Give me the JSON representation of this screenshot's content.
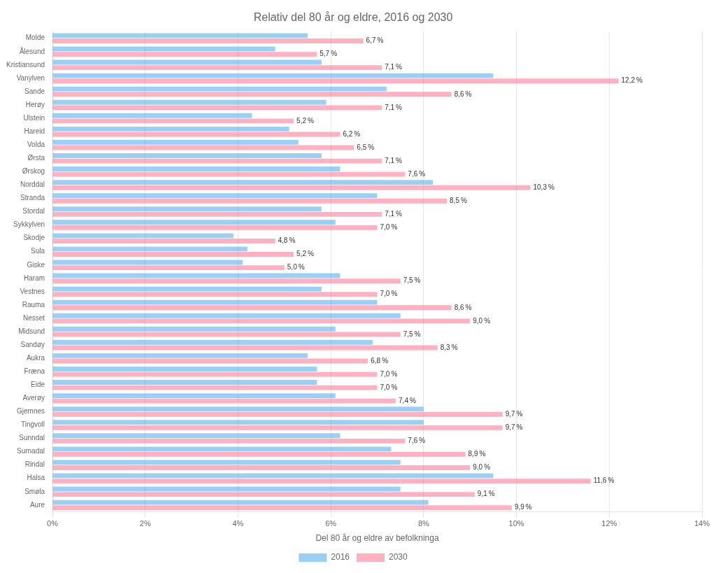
{
  "chart_data": {
    "type": "bar",
    "orientation": "horizontal",
    "title": "Relativ del 80 år og eldre, 2016 og 2030",
    "xlabel": "Del 80 år og eldre av befolkninga",
    "categories": [
      "Molde",
      "Ålesund",
      "Kristiansund",
      "Vanylven",
      "Sande",
      "Herøy",
      "Ulstein",
      "Hareid",
      "Volda",
      "Ørsta",
      "Ørskog",
      "Norddal",
      "Stranda",
      "Stordal",
      "Sykkylven",
      "Skodje",
      "Sula",
      "Giske",
      "Haram",
      "Vestnes",
      "Rauma",
      "Nesset",
      "Midsund",
      "Sandøy",
      "Aukra",
      "Fræna",
      "Eide",
      "Averøy",
      "Gjemnes",
      "Tingvoll",
      "Sunndal",
      "Surnadal",
      "Rindal",
      "Halsa",
      "Smøla",
      "Aure"
    ],
    "series": [
      {
        "name": "2016",
        "values": [
          5.5,
          4.8,
          5.8,
          9.5,
          7.2,
          5.9,
          4.3,
          5.1,
          5.3,
          5.8,
          6.2,
          8.2,
          7.0,
          5.8,
          6.1,
          3.9,
          4.2,
          4.1,
          6.2,
          5.8,
          7.0,
          7.5,
          6.1,
          6.9,
          5.5,
          5.7,
          5.7,
          6.1,
          8.0,
          8.0,
          6.2,
          7.3,
          7.5,
          9.5,
          7.5,
          8.1
        ]
      },
      {
        "name": "2030",
        "values": [
          6.7,
          5.7,
          7.1,
          12.2,
          8.6,
          7.1,
          5.2,
          6.2,
          6.5,
          7.1,
          7.6,
          10.3,
          8.5,
          7.1,
          7.0,
          4.8,
          5.2,
          5.0,
          7.5,
          7.0,
          8.6,
          9.0,
          7.5,
          8.3,
          6.8,
          7.0,
          7.0,
          7.4,
          9.7,
          9.7,
          7.6,
          8.9,
          9.0,
          11.6,
          9.1,
          9.9
        ],
        "data_labels": true,
        "value_labels": [
          "6,7 %",
          "5,7 %",
          "7,1 %",
          "12,2 %",
          "8,6 %",
          "7,1 %",
          "5,2 %",
          "6,2 %",
          "6,5 %",
          "7,1 %",
          "7,6 %",
          "10,3 %",
          "8,5 %",
          "7,1 %",
          "7,0 %",
          "4,8 %",
          "5,2 %",
          "5,0 %",
          "7,5 %",
          "7,0 %",
          "8,6 %",
          "9,0 %",
          "7,5 %",
          "8,3 %",
          "6,8 %",
          "7,0 %",
          "7,0 %",
          "7,4 %",
          "9,7 %",
          "9,7 %",
          "7,6 %",
          "8,9 %",
          "9,0 %",
          "11,6 %",
          "9,1 %",
          "9,9 %"
        ]
      }
    ],
    "xlim": [
      0,
      14
    ],
    "xticks": [
      {
        "value": 0,
        "label": "0%"
      },
      {
        "value": 2,
        "label": "2%"
      },
      {
        "value": 4,
        "label": "4%"
      },
      {
        "value": 6,
        "label": "6%"
      },
      {
        "value": 8,
        "label": "8%"
      },
      {
        "value": 10,
        "label": "10%"
      },
      {
        "value": 12,
        "label": "12%"
      },
      {
        "value": 14,
        "label": "14%"
      }
    ],
    "grid": true,
    "legend": "bottom"
  }
}
